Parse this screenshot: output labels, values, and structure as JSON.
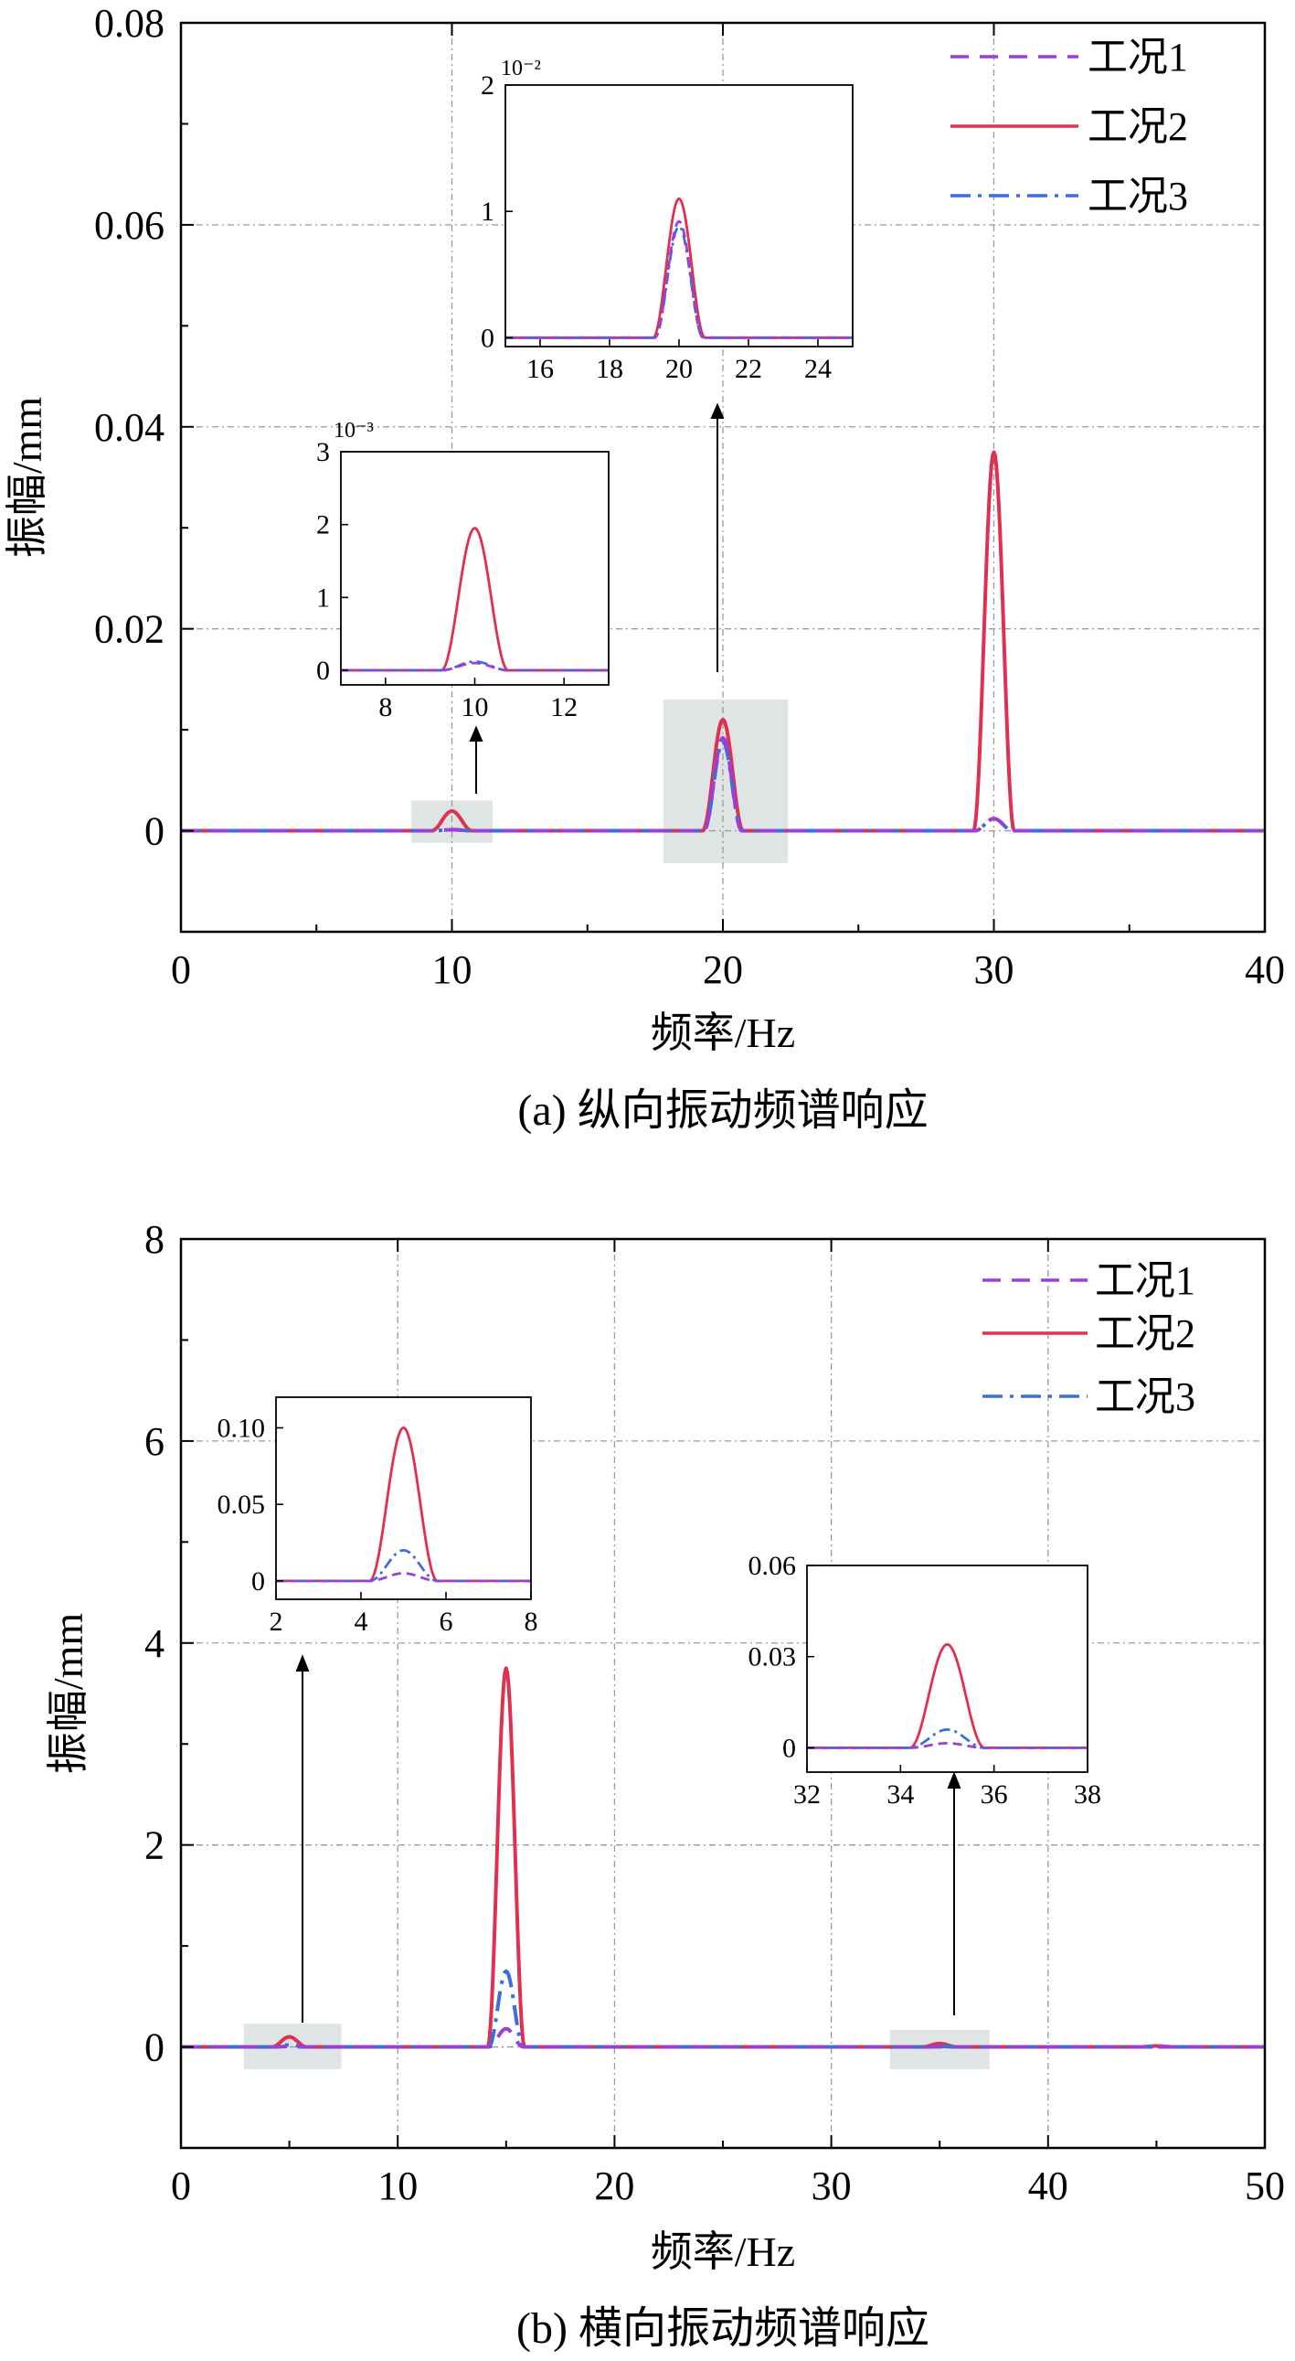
{
  "figure": {
    "caption_a": "(a) 纵向振动频谱响应",
    "caption_b": "(b) 横向振动频谱响应"
  },
  "colors": {
    "case1": "#9b3fd6",
    "case2": "#e03050",
    "case3": "#3a6fdc",
    "grid": "#9a9a9a",
    "highlight": "#b9c6c6"
  },
  "chart_data": [
    {
      "type": "line",
      "id": "a",
      "title": "(a) 纵向振动频谱响应",
      "xlabel": "频率/Hz",
      "ylabel": "振幅/mm",
      "xlim": [
        0,
        40
      ],
      "ylim": [
        -0.01,
        0.08
      ],
      "xticks": [
        0,
        10,
        20,
        30,
        40
      ],
      "xtick_labels": [
        "0",
        "10",
        "20",
        "30",
        "40"
      ],
      "yticks": [
        0,
        0.02,
        0.04,
        0.06,
        0.08
      ],
      "ytick_labels": [
        "0",
        "0.02",
        "0.04",
        "0.06",
        "0.08"
      ],
      "grid": true,
      "legend": "top-right",
      "series": [
        {
          "name": "工况1",
          "style": "dashed",
          "peaks": [
            {
              "x": 10,
              "y": 0.0001,
              "w": 0.75
            },
            {
              "x": 20,
              "y": 0.0092,
              "w": 0.7
            },
            {
              "x": 30,
              "y": 0.0012,
              "w": 0.7
            }
          ]
        },
        {
          "name": "工况2",
          "style": "solid",
          "peaks": [
            {
              "x": 10,
              "y": 0.00195,
              "w": 0.75
            },
            {
              "x": 20,
              "y": 0.011,
              "w": 0.75
            },
            {
              "x": 30,
              "y": 0.0375,
              "w": 0.75
            }
          ]
        },
        {
          "name": "工况3",
          "style": "dashdot",
          "peaks": [
            {
              "x": 10,
              "y": 0.00012,
              "w": 0.75
            },
            {
              "x": 20,
              "y": 0.0088,
              "w": 0.7
            },
            {
              "x": 30,
              "y": 0.0012,
              "w": 0.7
            }
          ]
        }
      ],
      "highlight_regions": [
        {
          "x": [
            8.5,
            11.5
          ],
          "y": [
            -0.0012,
            0.003
          ]
        },
        {
          "x": [
            17.8,
            22.4
          ],
          "y": [
            -0.0032,
            0.013
          ]
        }
      ],
      "insets": [
        {
          "xlim": [
            7,
            13
          ],
          "ylim": [
            -0.0002,
            0.003
          ],
          "xticks": [
            8,
            10,
            12
          ],
          "xtick_labels": [
            "8",
            "10",
            "12"
          ],
          "yticks": [
            0,
            0.001,
            0.002,
            0.003
          ],
          "ytick_labels": [
            "0",
            "1",
            "2",
            "3"
          ],
          "exponent": "10⁻³"
        },
        {
          "xlim": [
            15,
            25
          ],
          "ylim": [
            -0.0007,
            0.02
          ],
          "xticks": [
            16,
            18,
            20,
            22,
            24
          ],
          "xtick_labels": [
            "16",
            "18",
            "20",
            "22",
            "24"
          ],
          "yticks": [
            0,
            0.01,
            0.02
          ],
          "ytick_labels": [
            "0",
            "1",
            "2"
          ],
          "exponent": "10⁻²"
        }
      ]
    },
    {
      "type": "line",
      "id": "b",
      "title": "(b) 横向振动频谱响应",
      "xlabel": "频率/Hz",
      "ylabel": "振幅/mm",
      "xlim": [
        0,
        50
      ],
      "ylim": [
        -1,
        8
      ],
      "xticks": [
        0,
        10,
        20,
        30,
        40,
        50
      ],
      "xtick_labels": [
        "0",
        "10",
        "20",
        "30",
        "40",
        "50"
      ],
      "yticks": [
        0,
        2,
        4,
        6,
        8
      ],
      "ytick_labels": [
        "0",
        "2",
        "4",
        "6",
        "8"
      ],
      "grid": true,
      "legend": "top-right",
      "series": [
        {
          "name": "工况1",
          "style": "dashed",
          "peaks": [
            {
              "x": 5,
              "y": 0.005,
              "w": 0.8
            },
            {
              "x": 15,
              "y": 0.18,
              "w": 0.8
            },
            {
              "x": 35,
              "y": 0.0015,
              "w": 0.8
            }
          ]
        },
        {
          "name": "工况2",
          "style": "solid",
          "peaks": [
            {
              "x": 5,
              "y": 0.1,
              "w": 0.8
            },
            {
              "x": 15,
              "y": 3.75,
              "w": 0.85
            },
            {
              "x": 35,
              "y": 0.034,
              "w": 0.8
            },
            {
              "x": 45,
              "y": 0.01,
              "w": 0.8
            }
          ]
        },
        {
          "name": "工况3",
          "style": "dashdot",
          "peaks": [
            {
              "x": 5,
              "y": 0.02,
              "w": 0.8
            },
            {
              "x": 15,
              "y": 0.75,
              "w": 0.8
            },
            {
              "x": 35,
              "y": 0.006,
              "w": 0.8
            }
          ]
        }
      ],
      "highlight_regions": [
        {
          "x": [
            2.9,
            7.4
          ],
          "y": [
            -0.22,
            0.23
          ]
        },
        {
          "x": [
            32.7,
            37.3
          ],
          "y": [
            -0.22,
            0.17
          ]
        }
      ],
      "insets": [
        {
          "xlim": [
            2,
            8
          ],
          "ylim": [
            -0.012,
            0.12
          ],
          "xticks": [
            2,
            4,
            6,
            8
          ],
          "xtick_labels": [
            "2",
            "4",
            "6",
            "8"
          ],
          "yticks": [
            0,
            0.05,
            0.1
          ],
          "ytick_labels": [
            "0",
            "0.05",
            "0.10"
          ],
          "exponent": ""
        },
        {
          "xlim": [
            32,
            38
          ],
          "ylim": [
            -0.008,
            0.06
          ],
          "xticks": [
            32,
            34,
            36,
            38
          ],
          "xtick_labels": [
            "32",
            "34",
            "36",
            "38"
          ],
          "yticks": [
            0,
            0.03,
            0.06
          ],
          "ytick_labels": [
            "0",
            "0.03",
            "0.06"
          ],
          "exponent": ""
        }
      ]
    }
  ]
}
